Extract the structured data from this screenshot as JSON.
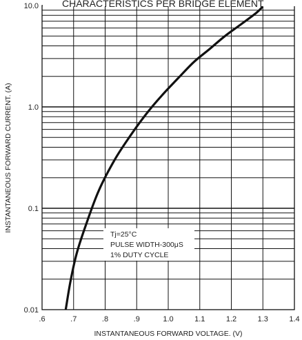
{
  "chart_data": {
    "type": "line",
    "title": "CHARACTERISTICS PER BRIDGE ELEMENT",
    "xlabel": "INSTANTANEOUS FORWARD VOLTAGE. (V)",
    "ylabel": "INSTANTANEOUS FORWARD CURRENT. (A)",
    "x_ticks": [
      ".6",
      ".7",
      ".8",
      ".9",
      "1.0",
      "1.1",
      "1.2",
      "1.3",
      "1.4"
    ],
    "y_ticks": [
      "10.0",
      "1.0",
      "0.1",
      "0.01"
    ],
    "xlim": [
      0.6,
      1.4
    ],
    "ylim": [
      0.01,
      10.0
    ],
    "y_scale": "log",
    "grid": true,
    "annotation": [
      "Tj=25°C",
      "PULSE WIDTH-300μS",
      "1% DUTY CYCLE"
    ],
    "series": [
      {
        "x": [
          0.675,
          0.69,
          0.71,
          0.74,
          0.78,
          0.83,
          0.88,
          0.93,
          0.98,
          1.03,
          1.08,
          1.13,
          1.18,
          1.23,
          1.28,
          1.3
        ],
        "y": [
          0.01,
          0.019,
          0.036,
          0.07,
          0.15,
          0.3,
          0.52,
          0.85,
          1.3,
          1.9,
          2.75,
          3.7,
          5.0,
          6.5,
          8.5,
          9.8
        ]
      }
    ]
  }
}
